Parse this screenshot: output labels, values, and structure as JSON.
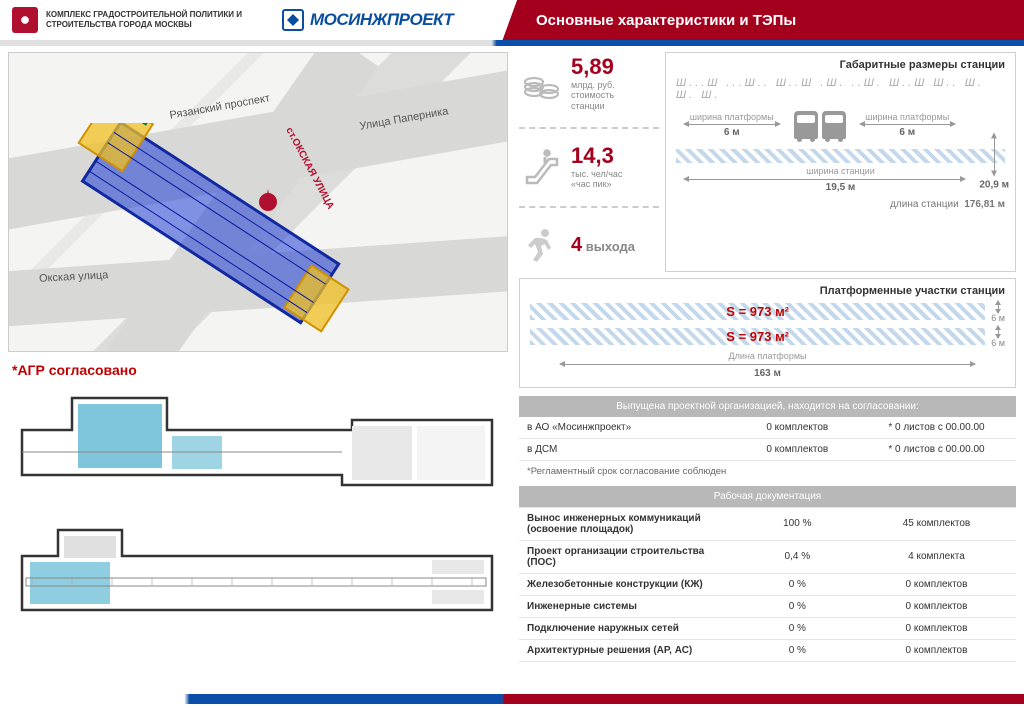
{
  "header": {
    "org_line1": "КОМПЛЕКС ГРАДОСТРОИТЕЛЬНОЙ ПОЛИТИКИ И",
    "org_line2": "СТРОИТЕЛЬСТВА ГОРОДА МОСКВЫ",
    "logo_text": "МОСИНЖПРОЕКТ",
    "title": "Основные характеристики и ТЭПы",
    "colors": {
      "brand_red": "#a4001d",
      "brand_blue": "#0a50aa"
    }
  },
  "map": {
    "label_prospekt": "Рязанский проспект",
    "label_okskaya": "Окская улица",
    "label_station": "ст.ОКСКАЯ УЛИЦА",
    "label_papernika": "Улица Паперника"
  },
  "agr_note": "*АГР согласовано",
  "stats": {
    "cost_value": "5,89",
    "cost_label": "млрд. руб.\nстоимость\nстанции",
    "flow_value": "14,3",
    "flow_label": "тыс. чел/час\n«час пик»",
    "exits_count": "4",
    "exits_label": "выхода"
  },
  "dimensions": {
    "title": "Габаритные размеры станции",
    "platform_width_label": "ширина платформы",
    "platform_width_value": "6 м",
    "station_width_label": "ширина станции",
    "station_width_value": "19,5 м",
    "station_height_value": "20,9 м",
    "station_length_label": "длина станции",
    "station_length_value": "176,81 м",
    "track_pattern": "Ш...Ш ...Ш.. Ш..Ш .Ш. ..Ш. Ш..Ш Ш.. Ш. Ш. Ш."
  },
  "platforms": {
    "title": "Платформенные участки станции",
    "area_text": "S = 973 м²",
    "plat_height": "6 м",
    "length_label": "Длина платформы",
    "length_value": "163 м"
  },
  "table1": {
    "header": "Выпущена проектной организацией, находится на согласовании:",
    "rows": [
      {
        "who": "в АО «Мосинжпроект»",
        "sets": "0 комплектов",
        "sheets": "* 0 листов с 00.00.00"
      },
      {
        "who": "в ДСМ",
        "sets": "0 комплектов",
        "sheets": "* 0 листов с 00.00.00"
      }
    ],
    "footnote": "*Регламентный срок согласование соблюден"
  },
  "table2": {
    "header": "Рабочая документация",
    "rows": [
      {
        "name": "Вынос инженерных коммуникаций (освоение площадок)",
        "pct": "100 %",
        "sets": "45 комплектов"
      },
      {
        "name": "Проект организации строительства\n(ПОС)",
        "pct": "0,4 %",
        "sets": "4 комплекта"
      },
      {
        "name": "Железобетонные конструкции (КЖ)",
        "pct": "0 %",
        "sets": "0 комплектов"
      },
      {
        "name": "Инженерные системы",
        "pct": "0 %",
        "sets": "0 комплектов"
      },
      {
        "name": "Подключение наружных сетей",
        "pct": "0 %",
        "sets": "0 комплектов"
      },
      {
        "name": "Архитектурные решения (АР, АС)",
        "pct": "0 %",
        "sets": "0 комплектов"
      }
    ]
  }
}
